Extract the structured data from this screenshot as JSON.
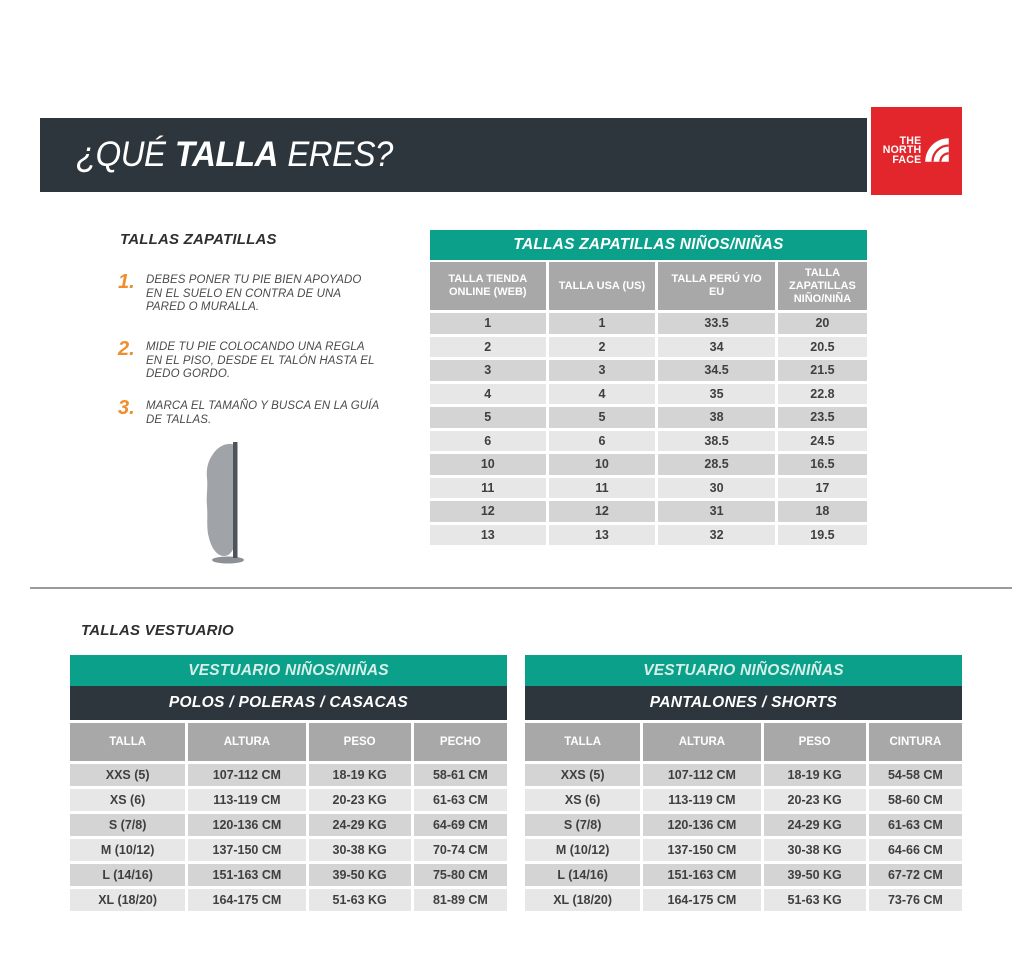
{
  "header": {
    "title_prefix": "¿QUÉ",
    "title_bold": "TALLA",
    "title_suffix": "ERES?"
  },
  "logo": {
    "lines": [
      "THE",
      "NORTH",
      "FACE"
    ],
    "brand_color": "#e2262b"
  },
  "colors": {
    "teal": "#0aa08a",
    "dark_slate": "#2d363c",
    "orange": "#ee8e2c",
    "header_gray": "#a8a8a8"
  },
  "instructions": {
    "heading": "TALLAS ZAPATILLAS",
    "steps": [
      {
        "num": "1.",
        "text": "DEBES PONER TU PIE BIEN APOYADO EN EL SUELO EN CONTRA DE UNA PARED O MURALLA."
      },
      {
        "num": "2.",
        "text": "MIDE TU PIE COLOCANDO UNA REGLA EN EL PISO, DESDE EL TALÓN HASTA EL DEDO GORDO."
      },
      {
        "num": "3.",
        "text": "MARCA EL TAMAÑO Y BUSCA EN LA GUÍA DE TALLAS."
      }
    ]
  },
  "shoe_table": {
    "title": "TALLAS ZAPATILLAS NIÑOS/NIÑAS",
    "columns": [
      "TALLA TIENDA ONLINE (WEB)",
      "TALLA USA (US)",
      "TALLA PERÚ Y/O EU",
      "TALLA ZAPATILLAS NIÑO/NIÑA"
    ],
    "rows": [
      [
        "1",
        "1",
        "33.5",
        "20"
      ],
      [
        "2",
        "2",
        "34",
        "20.5"
      ],
      [
        "3",
        "3",
        "34.5",
        "21.5"
      ],
      [
        "4",
        "4",
        "35",
        "22.8"
      ],
      [
        "5",
        "5",
        "38",
        "23.5"
      ],
      [
        "6",
        "6",
        "38.5",
        "24.5"
      ],
      [
        "10",
        "10",
        "28.5",
        "16.5"
      ],
      [
        "11",
        "11",
        "30",
        "17"
      ],
      [
        "12",
        "12",
        "31",
        "18"
      ],
      [
        "13",
        "13",
        "32",
        "19.5"
      ]
    ]
  },
  "vestuario": {
    "heading": "TALLAS VESTUARIO",
    "tables": [
      {
        "title": "VESTUARIO NIÑOS/NIÑAS",
        "subtitle": "POLOS / POLERAS / CASACAS",
        "columns": [
          "TALLA",
          "ALTURA",
          "PESO",
          "PECHO"
        ],
        "rows": [
          [
            "XXS (5)",
            "107-112 CM",
            "18-19 KG",
            "58-61 CM"
          ],
          [
            "XS (6)",
            "113-119 CM",
            "20-23 KG",
            "61-63 CM"
          ],
          [
            "S (7/8)",
            "120-136 CM",
            "24-29 KG",
            "64-69 CM"
          ],
          [
            "M (10/12)",
            "137-150 CM",
            "30-38 KG",
            "70-74 CM"
          ],
          [
            "L (14/16)",
            "151-163 CM",
            "39-50 KG",
            "75-80 CM"
          ],
          [
            "XL (18/20)",
            "164-175 CM",
            "51-63 KG",
            "81-89 CM"
          ]
        ]
      },
      {
        "title": "VESTUARIO NIÑOS/NIÑAS",
        "subtitle": "PANTALONES / SHORTS",
        "columns": [
          "TALLA",
          "ALTURA",
          "PESO",
          "CINTURA"
        ],
        "rows": [
          [
            "XXS (5)",
            "107-112 CM",
            "18-19 KG",
            "54-58 CM"
          ],
          [
            "XS (6)",
            "113-119 CM",
            "20-23 KG",
            "58-60 CM"
          ],
          [
            "S (7/8)",
            "120-136 CM",
            "24-29 KG",
            "61-63 CM"
          ],
          [
            "M (10/12)",
            "137-150 CM",
            "30-38 KG",
            "64-66 CM"
          ],
          [
            "L (14/16)",
            "151-163 CM",
            "39-50 KG",
            "67-72 CM"
          ],
          [
            "XL (18/20)",
            "164-175 CM",
            "51-63 KG",
            "73-76 CM"
          ]
        ]
      }
    ]
  }
}
